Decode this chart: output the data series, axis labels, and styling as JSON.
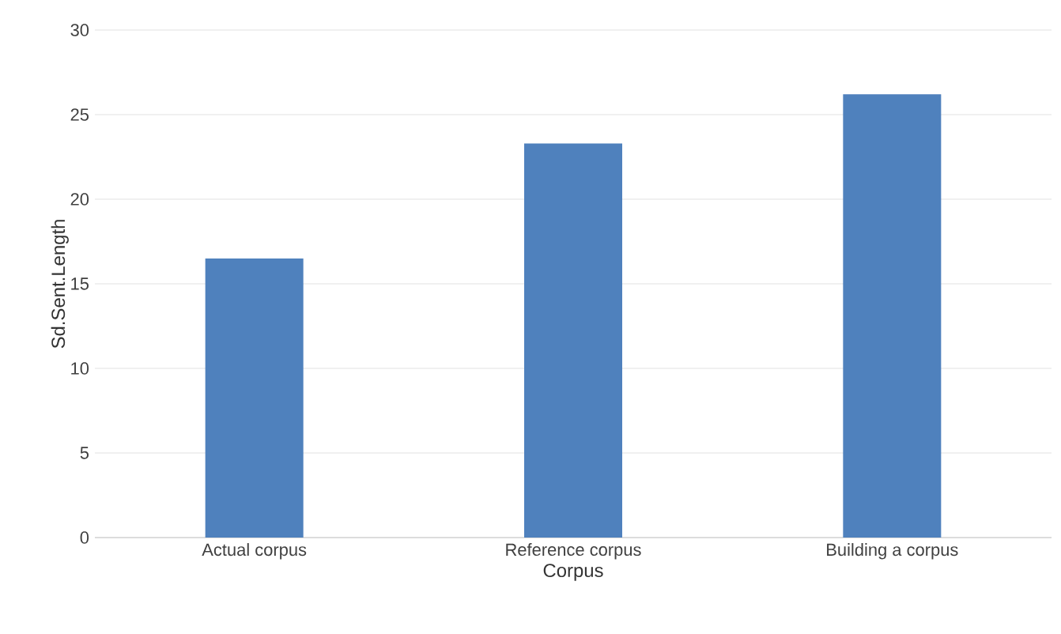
{
  "chart_data": {
    "type": "bar",
    "xlabel": "Corpus",
    "ylabel": "Sd.Sent.Length",
    "categories": [
      "Actual corpus",
      "Reference corpus",
      "Building a corpus"
    ],
    "values": [
      16.5,
      23.3,
      26.2
    ],
    "color": "#4f81bd",
    "ylim": [
      0,
      30
    ],
    "yticks": [
      0,
      5,
      10,
      15,
      20,
      25,
      30
    ],
    "grid": "y"
  }
}
